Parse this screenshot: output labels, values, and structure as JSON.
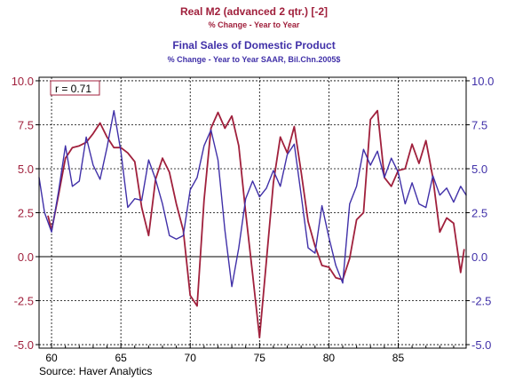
{
  "chart_data": {
    "type": "line",
    "title_1": "Real M2 (advanced 2 qtr.)  [-2]",
    "subtitle_1": "% Change - Year to Year",
    "title_2": "Final Sales of Domestic Product",
    "subtitle_2": "% Change - Year to Year     SAAR, Bil.Chn.2005$",
    "annotation": "r = 0.71",
    "source": "Source: Haver Analytics",
    "xlim": [
      1959.1,
      1989.9
    ],
    "ylim": [
      -5.2,
      10.2
    ],
    "yticks": [
      10.0,
      7.5,
      5.0,
      2.5,
      0.0,
      -2.5,
      -5.0
    ],
    "ytick_labels": [
      "10.0",
      "7.5",
      "5.0",
      "2.5",
      "0.0",
      "-2.5",
      "-5.0"
    ],
    "xticks": [
      1960,
      1965,
      1970,
      1975,
      1980,
      1985
    ],
    "xtick_labels": [
      "60",
      "65",
      "70",
      "75",
      "80",
      "85"
    ],
    "grid": true,
    "series": [
      {
        "name": "Real M2 (advanced 2 qtr.)  [-2]",
        "color": "#a0203c",
        "axis": "left",
        "x": [
          1959.75,
          1960.0,
          1960.5,
          1961.0,
          1961.5,
          1962.0,
          1962.5,
          1963.0,
          1963.5,
          1964.0,
          1964.5,
          1965.0,
          1965.5,
          1966.0,
          1966.5,
          1967.0,
          1967.5,
          1968.0,
          1968.5,
          1969.0,
          1969.5,
          1970.0,
          1970.5,
          1971.0,
          1971.5,
          1972.0,
          1972.5,
          1973.0,
          1973.5,
          1974.0,
          1974.5,
          1975.0,
          1975.5,
          1976.0,
          1976.5,
          1977.0,
          1977.5,
          1978.0,
          1978.5,
          1979.0,
          1979.5,
          1980.0,
          1980.5,
          1981.0,
          1981.5,
          1982.0,
          1982.5,
          1983.0,
          1983.5,
          1984.0,
          1984.5,
          1985.0,
          1985.5,
          1986.0,
          1986.5,
          1987.0,
          1987.5,
          1988.0,
          1988.5,
          1989.0,
          1989.5,
          1989.75
        ],
        "values": [
          2.3,
          1.5,
          3.5,
          5.6,
          6.2,
          6.3,
          6.5,
          7.0,
          7.6,
          6.8,
          6.2,
          6.2,
          5.9,
          5.4,
          2.8,
          1.2,
          4.4,
          5.6,
          4.8,
          3.0,
          1.5,
          -2.2,
          -2.8,
          3.2,
          7.3,
          8.2,
          7.3,
          8.0,
          6.3,
          2.5,
          -1.0,
          -4.6,
          -0.2,
          4.2,
          6.8,
          5.9,
          7.4,
          4.8,
          2.0,
          0.6,
          -0.5,
          -0.6,
          -1.2,
          -1.3,
          -0.1,
          2.1,
          2.5,
          7.8,
          8.3,
          4.5,
          4.0,
          4.9,
          5.0,
          6.4,
          5.3,
          6.6,
          4.5,
          1.4,
          2.2,
          1.9,
          -0.9,
          0.4
        ]
      },
      {
        "name": "Final Sales of Domestic Product",
        "color": "#4030a8",
        "axis": "right",
        "x": [
          1959.1,
          1959.5,
          1960.0,
          1960.5,
          1961.0,
          1961.5,
          1962.0,
          1962.5,
          1963.0,
          1963.5,
          1964.0,
          1964.5,
          1965.0,
          1965.5,
          1966.0,
          1966.5,
          1967.0,
          1967.5,
          1968.0,
          1968.5,
          1969.0,
          1969.5,
          1970.0,
          1970.5,
          1971.0,
          1971.5,
          1972.0,
          1972.5,
          1973.0,
          1973.5,
          1974.0,
          1974.5,
          1975.0,
          1975.5,
          1976.0,
          1976.5,
          1977.0,
          1977.5,
          1978.0,
          1978.5,
          1979.0,
          1979.5,
          1980.0,
          1980.5,
          1981.0,
          1981.5,
          1982.0,
          1982.5,
          1983.0,
          1983.5,
          1984.0,
          1984.5,
          1985.0,
          1985.5,
          1986.0,
          1986.5,
          1987.0,
          1987.5,
          1988.0,
          1988.5,
          1989.0,
          1989.5,
          1989.9
        ],
        "values": [
          4.5,
          2.5,
          1.4,
          3.7,
          6.3,
          4.0,
          4.3,
          6.8,
          5.2,
          4.4,
          6.2,
          8.3,
          6.0,
          2.8,
          3.3,
          3.2,
          5.5,
          4.4,
          3.0,
          1.2,
          1.0,
          1.2,
          3.8,
          4.5,
          6.3,
          7.2,
          5.5,
          1.5,
          -1.7,
          0.5,
          3.3,
          4.3,
          3.4,
          3.9,
          4.9,
          4.0,
          5.8,
          6.4,
          3.5,
          0.5,
          0.2,
          2.9,
          1.1,
          -0.5,
          -1.5,
          3.0,
          4.0,
          6.1,
          5.2,
          6.0,
          4.5,
          5.6,
          4.8,
          3.0,
          4.2,
          3.0,
          2.8,
          4.6,
          3.5,
          3.9,
          3.1,
          4.0,
          3.5
        ]
      }
    ]
  }
}
